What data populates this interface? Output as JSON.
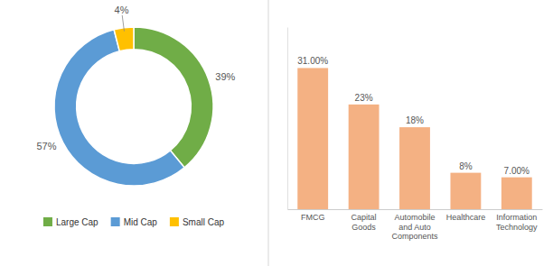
{
  "chart_data": [
    {
      "type": "pie",
      "categories": [
        "Large Cap",
        "Mid Cap",
        "Small Cap"
      ],
      "values": [
        39,
        57,
        4
      ],
      "value_labels": [
        "39%",
        "57%",
        "4%"
      ],
      "colors": [
        "#70ad47",
        "#5b9bd5",
        "#ffc000"
      ],
      "data_labels": true,
      "legend": "bottom"
    },
    {
      "type": "bar",
      "categories": [
        "FMCG",
        "Capital\nGoods",
        "Automobile\nand Auto\nComponents",
        "Healthcare",
        "Information\nTechnology"
      ],
      "values": [
        31,
        23,
        18,
        8,
        7
      ],
      "value_labels": [
        "31.00%",
        "23%",
        "18%",
        "8%",
        "7.00%"
      ],
      "color": "#f4b183",
      "ylim": [
        0,
        40
      ],
      "data_labels": true,
      "tick_labels": "x"
    }
  ]
}
